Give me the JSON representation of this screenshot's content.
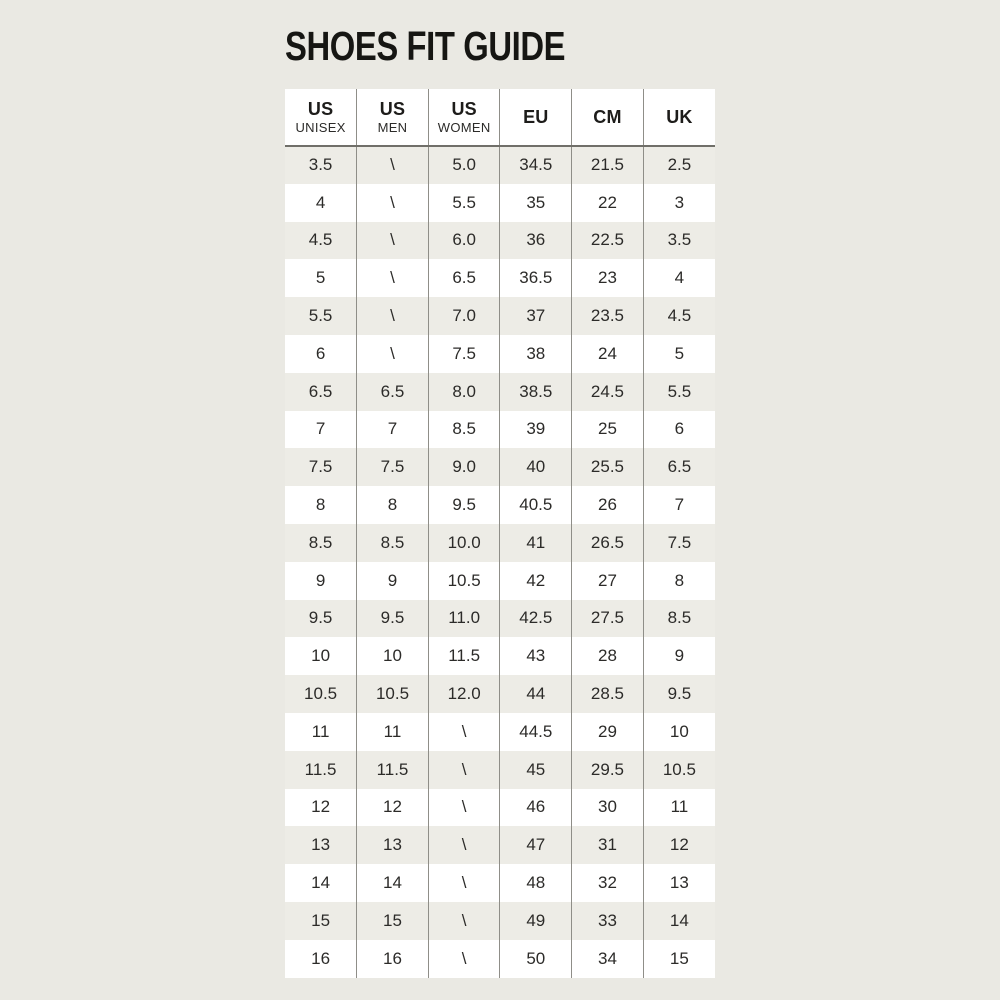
{
  "title": "SHOES FIT GUIDE",
  "colors": {
    "page_background": "#eae9e3",
    "row_alt": "#edece6",
    "row_white": "#ffffff",
    "grid_line": "#8f8e88",
    "header_rule": "#706f69",
    "text": "#2c2b29"
  },
  "table": {
    "columns": [
      {
        "label": "US",
        "sublabel": "UNISEX"
      },
      {
        "label": "US",
        "sublabel": "MEN"
      },
      {
        "label": "US",
        "sublabel": "WOMEN"
      },
      {
        "label": "EU",
        "sublabel": ""
      },
      {
        "label": "CM",
        "sublabel": ""
      },
      {
        "label": "UK",
        "sublabel": ""
      }
    ]
  },
  "chart_data": {
    "type": "table",
    "title": "SHOES FIT GUIDE",
    "columns": [
      "US UNISEX",
      "US MEN",
      "US WOMEN",
      "EU",
      "CM",
      "UK"
    ],
    "rows": [
      [
        "3.5",
        "\\",
        "5.0",
        "34.5",
        "21.5",
        "2.5"
      ],
      [
        "4",
        "\\",
        "5.5",
        "35",
        "22",
        "3"
      ],
      [
        "4.5",
        "\\",
        "6.0",
        "36",
        "22.5",
        "3.5"
      ],
      [
        "5",
        "\\",
        "6.5",
        "36.5",
        "23",
        "4"
      ],
      [
        "5.5",
        "\\",
        "7.0",
        "37",
        "23.5",
        "4.5"
      ],
      [
        "6",
        "\\",
        "7.5",
        "38",
        "24",
        "5"
      ],
      [
        "6.5",
        "6.5",
        "8.0",
        "38.5",
        "24.5",
        "5.5"
      ],
      [
        "7",
        "7",
        "8.5",
        "39",
        "25",
        "6"
      ],
      [
        "7.5",
        "7.5",
        "9.0",
        "40",
        "25.5",
        "6.5"
      ],
      [
        "8",
        "8",
        "9.5",
        "40.5",
        "26",
        "7"
      ],
      [
        "8.5",
        "8.5",
        "10.0",
        "41",
        "26.5",
        "7.5"
      ],
      [
        "9",
        "9",
        "10.5",
        "42",
        "27",
        "8"
      ],
      [
        "9.5",
        "9.5",
        "11.0",
        "42.5",
        "27.5",
        "8.5"
      ],
      [
        "10",
        "10",
        "11.5",
        "43",
        "28",
        "9"
      ],
      [
        "10.5",
        "10.5",
        "12.0",
        "44",
        "28.5",
        "9.5"
      ],
      [
        "11",
        "11",
        "\\",
        "44.5",
        "29",
        "10"
      ],
      [
        "11.5",
        "11.5",
        "\\",
        "45",
        "29.5",
        "10.5"
      ],
      [
        "12",
        "12",
        "\\",
        "46",
        "30",
        "11"
      ],
      [
        "13",
        "13",
        "\\",
        "47",
        "31",
        "12"
      ],
      [
        "14",
        "14",
        "\\",
        "48",
        "32",
        "13"
      ],
      [
        "15",
        "15",
        "\\",
        "49",
        "33",
        "14"
      ],
      [
        "16",
        "16",
        "\\",
        "50",
        "34",
        "15"
      ]
    ]
  }
}
